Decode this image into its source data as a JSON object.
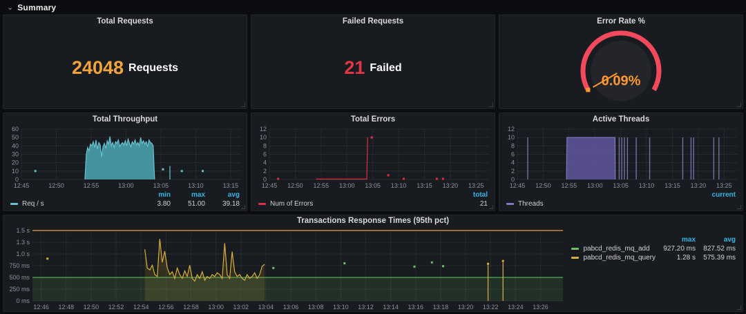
{
  "header": {
    "title": "Summary",
    "collapse_icon": "chevron-down"
  },
  "colors": {
    "accent_orange": "#f2a33a",
    "accent_red": "#e23645",
    "gauge_arc": "#f2495c",
    "gauge_needle": "#ff9830",
    "legend_header": "#33b5e5",
    "throughput_series": "#66c2d1",
    "errors_series": "#e02f44",
    "threads_series": "#8079bd",
    "query_series": "#d9af3c",
    "add_series": "#73bf69"
  },
  "panels": {
    "total_requests": {
      "title": "Total Requests",
      "value": "24048",
      "unit": "Requests"
    },
    "failed_requests": {
      "title": "Failed Requests",
      "value": "21",
      "unit": "Failed"
    },
    "error_rate": {
      "title": "Error Rate %",
      "value": "0.09%",
      "arc_color": "#f2495c",
      "needle_color": "#ff9830",
      "value_color": "#ff9830"
    }
  },
  "chart_data": [
    {
      "type": "area",
      "title": "Total Throughput",
      "xlim": [
        0,
        31.5
      ],
      "ylim": [
        0,
        60
      ],
      "margin_left": 26,
      "xticks": [
        [
          0,
          "12:45"
        ],
        [
          5,
          "12:50"
        ],
        [
          10,
          "12:55"
        ],
        [
          15,
          "13:00"
        ],
        [
          20,
          "13:05"
        ],
        [
          25,
          "13:10"
        ],
        [
          30,
          "13:15"
        ]
      ],
      "yticks": [
        [
          0,
          "0"
        ],
        [
          10,
          "10"
        ],
        [
          20,
          "20"
        ],
        [
          30,
          "30"
        ],
        [
          40,
          "40"
        ],
        [
          50,
          "50"
        ],
        [
          60,
          "60"
        ]
      ],
      "series": [
        {
          "name": "Req / s",
          "color": "#66c2d1",
          "fill": "rgba(72,153,166,0.95)",
          "area": true,
          "start": 9.1,
          "step": 0.2,
          "values": [
            0,
            30,
            38,
            34,
            42,
            40,
            45,
            38,
            47,
            36,
            44,
            41,
            27,
            39,
            43,
            37,
            46,
            42,
            51,
            40,
            44,
            38,
            45,
            43,
            47,
            39,
            42,
            44,
            41,
            46,
            40,
            48,
            43,
            39,
            45,
            42,
            47,
            41,
            44,
            40,
            50,
            43,
            46,
            42,
            45,
            39,
            47,
            44,
            43,
            40,
            0
          ],
          "dots": [
            [
              2,
              10
            ],
            [
              20.3,
              12
            ],
            [
              23,
              10
            ],
            [
              26,
              10
            ]
          ],
          "bars": [
            [
              21.3,
              16
            ]
          ]
        }
      ],
      "legend": {
        "stats": [
          [
            "min",
            "3.80"
          ],
          [
            "max",
            "51.00"
          ],
          [
            "avg",
            "39.18"
          ]
        ]
      }
    },
    {
      "type": "line",
      "title": "Total Errors",
      "xlim": [
        0,
        42.5
      ],
      "ylim": [
        0,
        12
      ],
      "margin_left": 26,
      "xticks": [
        [
          0,
          "12:45"
        ],
        [
          5,
          "12:50"
        ],
        [
          10,
          "12:55"
        ],
        [
          15,
          "13:00"
        ],
        [
          20,
          "13:05"
        ],
        [
          25,
          "13:10"
        ],
        [
          30,
          "13:15"
        ],
        [
          35,
          "13:20"
        ],
        [
          40,
          "13:25"
        ]
      ],
      "yticks": [
        [
          0,
          "0"
        ],
        [
          2,
          "2"
        ],
        [
          4,
          "4"
        ],
        [
          6,
          "6"
        ],
        [
          8,
          "8"
        ],
        [
          10,
          "10"
        ],
        [
          12,
          "12"
        ]
      ],
      "series": [
        {
          "name": "Num of Errors",
          "color": "#e02f44",
          "points": [
            [
              9,
              0.08
            ],
            [
              18.85,
              0.08
            ],
            [
              19,
              10
            ]
          ],
          "dots": [
            [
              1.7,
              0.15
            ],
            [
              19.8,
              10
            ],
            [
              23,
              1
            ],
            [
              26,
              0.15
            ],
            [
              32.4,
              0.15
            ],
            [
              33.6,
              0.15
            ]
          ]
        }
      ],
      "legend": {
        "stats": [
          [
            "total",
            "21"
          ]
        ]
      }
    },
    {
      "type": "area",
      "title": "Active Threads",
      "xlim": [
        0,
        42.5
      ],
      "ylim": [
        0,
        12
      ],
      "margin_left": 26,
      "xticks": [
        [
          0,
          "12:45"
        ],
        [
          5,
          "12:50"
        ],
        [
          10,
          "12:55"
        ],
        [
          15,
          "13:00"
        ],
        [
          20,
          "13:05"
        ],
        [
          25,
          "13:10"
        ],
        [
          30,
          "13:15"
        ],
        [
          35,
          "13:20"
        ],
        [
          40,
          "13:25"
        ]
      ],
      "yticks": [
        [
          0,
          "0"
        ],
        [
          2,
          "2"
        ],
        [
          4,
          "4"
        ],
        [
          6,
          "6"
        ],
        [
          8,
          "8"
        ],
        [
          10,
          "10"
        ],
        [
          12,
          "12"
        ]
      ],
      "series": [
        {
          "name": "Threads",
          "color": "#8079bd",
          "fill": "rgba(92,83,148,0.92)",
          "area": true,
          "points": [
            [
              9.5,
              0
            ],
            [
              9.6,
              10
            ],
            [
              18.9,
              10
            ],
            [
              18.95,
              0
            ]
          ],
          "bars": [
            [
              2,
              10
            ],
            [
              19.7,
              10
            ],
            [
              20.2,
              10
            ],
            [
              20.7,
              10
            ],
            [
              21.3,
              10
            ],
            [
              23,
              10
            ],
            [
              25.6,
              10
            ],
            [
              32,
              10
            ],
            [
              33.6,
              10
            ],
            [
              34.1,
              10
            ],
            [
              38,
              10
            ],
            [
              39,
              10
            ]
          ]
        }
      ],
      "legend": {
        "stats": [
          [
            "current",
            ""
          ]
        ]
      }
    },
    {
      "type": "line",
      "title": "Transactions Response Times (95th pct)",
      "xlim": [
        0.3,
        42.8
      ],
      "ylim": [
        0,
        1500
      ],
      "margin_left": 42,
      "xticks": [
        [
          1,
          "12:46"
        ],
        [
          3,
          "12:48"
        ],
        [
          5,
          "12:50"
        ],
        [
          7,
          "12:52"
        ],
        [
          9,
          "12:54"
        ],
        [
          11,
          "12:56"
        ],
        [
          13,
          "12:58"
        ],
        [
          15,
          "13:00"
        ],
        [
          17,
          "13:02"
        ],
        [
          19,
          "13:04"
        ],
        [
          21,
          "13:06"
        ],
        [
          23,
          "13:08"
        ],
        [
          25,
          "13:10"
        ],
        [
          27,
          "13:12"
        ],
        [
          29,
          "13:14"
        ],
        [
          31,
          "13:16"
        ],
        [
          33,
          "13:18"
        ],
        [
          35,
          "13:20"
        ],
        [
          37,
          "13:22"
        ],
        [
          39,
          "13:24"
        ],
        [
          41,
          "13:26"
        ]
      ],
      "yticks": [
        [
          0,
          "0 ms"
        ],
        [
          250,
          "250 ms"
        ],
        [
          500,
          "500 ms"
        ],
        [
          750,
          "750 ms"
        ],
        [
          1000,
          "1.0 s"
        ],
        [
          1250,
          "1.3 s"
        ],
        [
          1500,
          "1.5 s"
        ]
      ],
      "regions": [
        {
          "from": 0,
          "to": 500,
          "fill": "rgba(78,168,84,0.16)",
          "line": "#4caf50"
        }
      ],
      "hlines": [
        {
          "v": 1500,
          "color": "#9e6d33",
          "width": 2
        }
      ],
      "series": [
        {
          "name": "pabcd_redis_mq_add",
          "color": "#73bf69",
          "dots": [
            [
              19.6,
              700
            ],
            [
              25.3,
              800
            ],
            [
              30.9,
              730
            ],
            [
              32.3,
              820
            ],
            [
              33.2,
              740
            ]
          ]
        },
        {
          "name": "pabcd_redis_mq_query",
          "color": "#d9af3c",
          "fill": "rgba(217,175,60,0.14)",
          "area": true,
          "start": 9.3,
          "step": 0.2,
          "values": [
            1100,
            700,
            660,
            760,
            560,
            520,
            1320,
            820,
            1060,
            700,
            560,
            620,
            480,
            700,
            560,
            480,
            640,
            520,
            760,
            480,
            420,
            560,
            480,
            620,
            440,
            520,
            480,
            560,
            520,
            600,
            560,
            480,
            1230,
            560,
            480,
            1050,
            620,
            520,
            560,
            480,
            440,
            560,
            480,
            520,
            600,
            480,
            560,
            740,
            780
          ],
          "dots": [
            [
              1.5,
              900
            ],
            [
              36.8,
              790
            ],
            [
              38,
              850
            ]
          ],
          "bars": [
            [
              36.8,
              760
            ],
            [
              38,
              820
            ]
          ]
        }
      ],
      "legend": {
        "headers": [
          "max",
          "avg"
        ],
        "rows": [
          {
            "name": "pabcd_redis_mq_add",
            "color": "#73bf69",
            "max": "927.20 ms",
            "avg": "827.52 ms"
          },
          {
            "name": "pabcd_redis_mq_query",
            "color": "#d9af3c",
            "max": "1.28 s",
            "avg": "575.39 ms"
          }
        ]
      }
    }
  ]
}
